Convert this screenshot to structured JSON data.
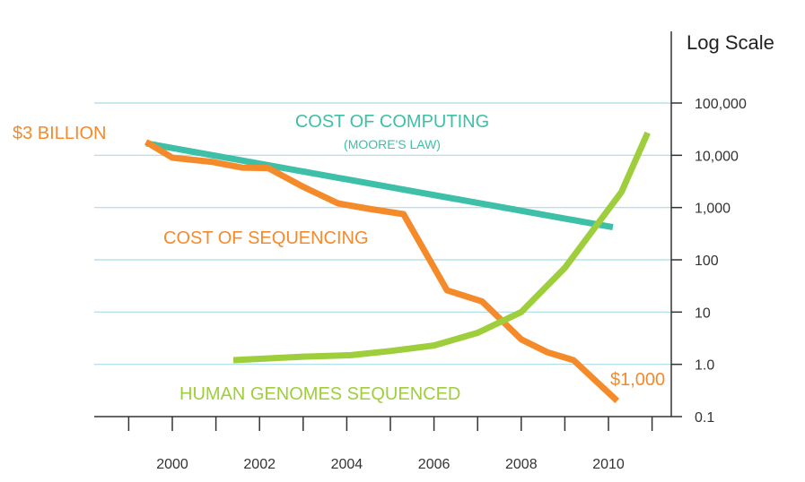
{
  "chart_data": {
    "type": "line",
    "ylabel": "Log Scale",
    "yscale": "log",
    "ylim": [
      0.1,
      100000
    ],
    "xlim": [
      1999,
      2011.5
    ],
    "y_ticks": [
      "0.1",
      "1.0",
      "10",
      "100",
      "1,000",
      "10,000",
      "100,000"
    ],
    "x_ticks": [
      "2000",
      "2002",
      "2004",
      "2006",
      "2008",
      "2010"
    ],
    "grid": true,
    "series": [
      {
        "name": "COST OF COMPUTING",
        "subtitle": "(MOORE'S LAW)",
        "color": "#3dbfa8",
        "x": [
          1999.4,
          2010.1
        ],
        "y": [
          17000,
          420
        ]
      },
      {
        "name": "COST OF SEQUENCING",
        "color": "#f58a2b",
        "x": [
          1999.4,
          2000,
          2000.9,
          2001.6,
          2002.2,
          2003,
          2003.8,
          2004.5,
          2005.3,
          2006.3,
          2007.1,
          2008,
          2008.6,
          2009.2,
          2010.2
        ],
        "y": [
          18000,
          9000,
          7500,
          5800,
          5700,
          2500,
          1200,
          950,
          750,
          26,
          16,
          3,
          1.7,
          1.2,
          0.2
        ]
      },
      {
        "name": "HUMAN GENOMES SEQUENCED",
        "color": "#9fce3c",
        "x": [
          2001.4,
          2003,
          2004.1,
          2005,
          2006,
          2007,
          2008,
          2009,
          2010.3,
          2010.9
        ],
        "y": [
          1.2,
          1.4,
          1.5,
          1.8,
          2.3,
          4,
          10,
          70,
          2000,
          27000
        ]
      }
    ],
    "annotations": [
      {
        "text": "$3 BILLION",
        "color": "#f58a2b"
      },
      {
        "text": "$1,000",
        "color": "#f58a2b"
      }
    ]
  }
}
